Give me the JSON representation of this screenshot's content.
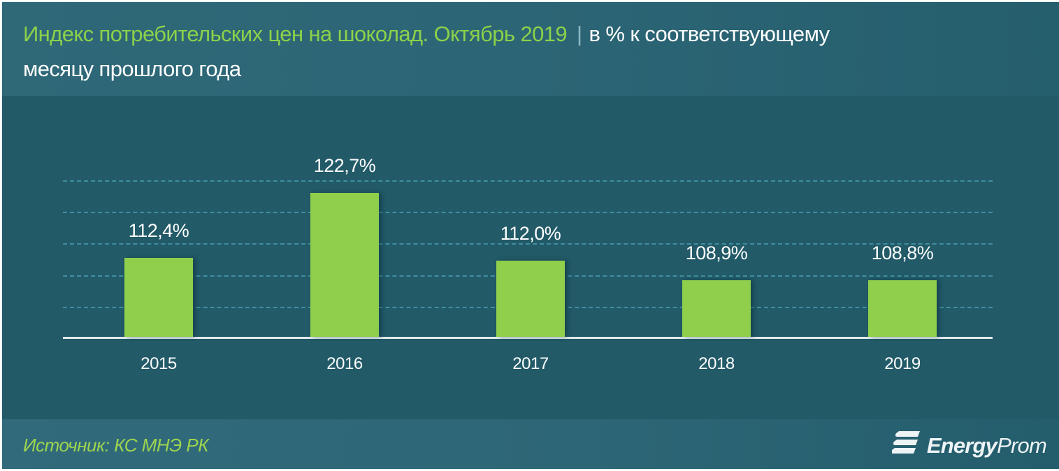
{
  "header": {
    "title_main": "Индекс потребительских цен на шоколад. Октябрь 2019",
    "separator": "|",
    "title_sub": "в % к соответствующему",
    "title_sub_line2": "месяцу прошлого года"
  },
  "footer": {
    "source": "Источник: КС МНЭ РК",
    "brand_bold": "Energy",
    "brand_light": "Prom",
    "brand_icon": "energyprom-logo-icon"
  },
  "colors": {
    "background": "#225a68",
    "bar": "#8fcf4c",
    "title_accent": "#8cd14a",
    "gridline": "#3f8e9f",
    "text": "#ffffff"
  },
  "chart_data": {
    "type": "bar",
    "title": "Индекс потребительских цен на шоколад. Октябрь 2019 | в % к соответствующему месяцу прошлого года",
    "categories": [
      "2015",
      "2016",
      "2017",
      "2018",
      "2019"
    ],
    "values": [
      112.4,
      122.7,
      112.0,
      108.9,
      108.8
    ],
    "value_labels": [
      "112,4%",
      "122,7%",
      "112,0%",
      "108,9%",
      "108,8%"
    ],
    "xlabel": "",
    "ylabel": "",
    "ylim": [
      100,
      125
    ],
    "gridlines": [
      105,
      110,
      115,
      120,
      125
    ],
    "grid": true,
    "grid_style": "dashed",
    "legend": "none",
    "source": "Источник: КС МНЭ РК"
  }
}
